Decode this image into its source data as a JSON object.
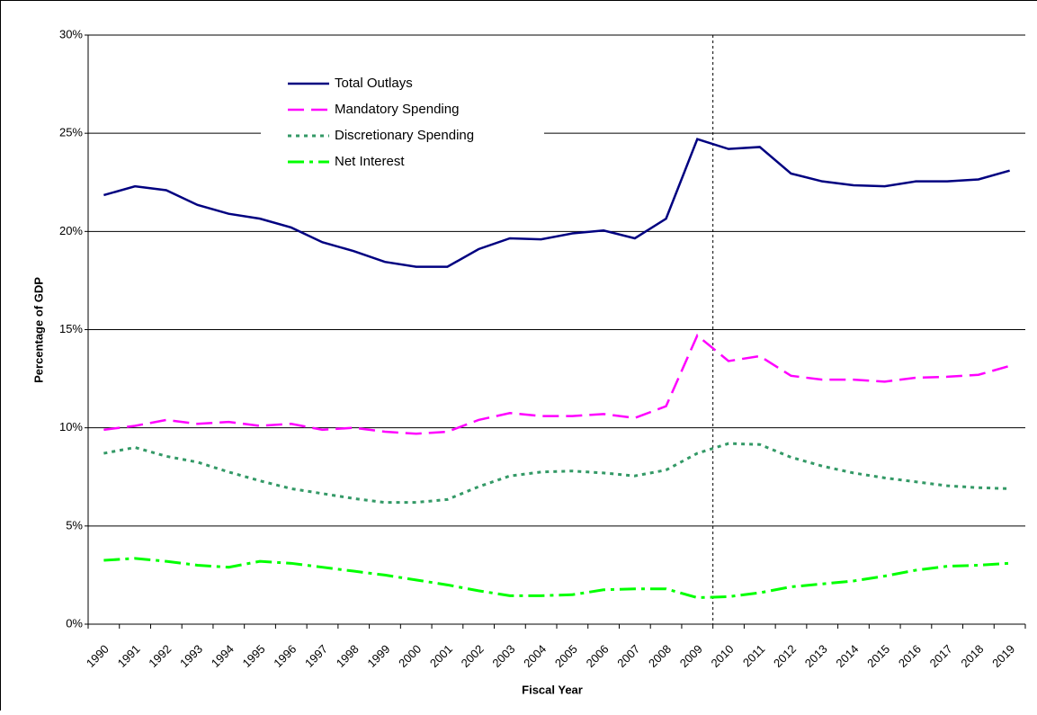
{
  "chart_data": {
    "type": "line",
    "x_label": "Fiscal Year",
    "y_label": "Percentage of GDP",
    "categories": [
      "1990",
      "1991",
      "1992",
      "1993",
      "1994",
      "1995",
      "1996",
      "1997",
      "1998",
      "1999",
      "2000",
      "2001",
      "2002",
      "2003",
      "2004",
      "2005",
      "2006",
      "2007",
      "2008",
      "2009",
      "2010",
      "2011",
      "2012",
      "2013",
      "2014",
      "2015",
      "2016",
      "2017",
      "2018",
      "2019"
    ],
    "series": [
      {
        "name": "Total Outlays",
        "color": "#000080",
        "dash": "solid",
        "values": [
          21.85,
          22.3,
          22.1,
          21.35,
          20.9,
          20.65,
          20.2,
          19.45,
          19.0,
          18.45,
          18.2,
          18.2,
          19.1,
          19.65,
          19.6,
          19.9,
          20.05,
          19.65,
          20.65,
          24.7,
          24.2,
          24.3,
          22.95,
          22.55,
          22.35,
          22.3,
          22.55,
          22.55,
          22.65,
          23.1
        ]
      },
      {
        "name": "Mandatory Spending",
        "color": "#ff00ff",
        "dash": "dash",
        "values": [
          9.9,
          10.1,
          10.4,
          10.2,
          10.3,
          10.1,
          10.2,
          9.9,
          10.0,
          9.8,
          9.7,
          9.8,
          10.4,
          10.75,
          10.6,
          10.6,
          10.7,
          10.5,
          11.1,
          14.7,
          13.4,
          13.65,
          12.65,
          12.45,
          12.45,
          12.35,
          12.55,
          12.6,
          12.7,
          13.15
        ]
      },
      {
        "name": "Discretionary Spending",
        "color": "#339966",
        "dash": "dot",
        "values": [
          8.7,
          9.0,
          8.55,
          8.25,
          7.75,
          7.3,
          6.9,
          6.65,
          6.4,
          6.2,
          6.2,
          6.35,
          7.0,
          7.55,
          7.75,
          7.8,
          7.7,
          7.55,
          7.85,
          8.7,
          9.2,
          9.15,
          8.5,
          8.05,
          7.7,
          7.45,
          7.25,
          7.05,
          6.95,
          6.9
        ]
      },
      {
        "name": "Net Interest",
        "color": "#00ff00",
        "dash": "dashdot",
        "values": [
          3.25,
          3.35,
          3.2,
          3.0,
          2.9,
          3.2,
          3.1,
          2.9,
          2.7,
          2.5,
          2.25,
          2.0,
          1.7,
          1.45,
          1.45,
          1.5,
          1.75,
          1.8,
          1.8,
          1.35,
          1.4,
          1.6,
          1.9,
          2.05,
          2.2,
          2.45,
          2.75,
          2.95,
          3.0,
          3.1
        ]
      }
    ],
    "ylim": [
      0,
      30
    ],
    "yticks": [
      {
        "value": 0,
        "label": "0%"
      },
      {
        "value": 5,
        "label": "5%"
      },
      {
        "value": 10,
        "label": "10%"
      },
      {
        "value": 15,
        "label": "15%"
      },
      {
        "value": 20,
        "label": "20%"
      },
      {
        "value": 25,
        "label": "25%"
      },
      {
        "value": 30,
        "label": "30%"
      }
    ],
    "grid": true
  }
}
